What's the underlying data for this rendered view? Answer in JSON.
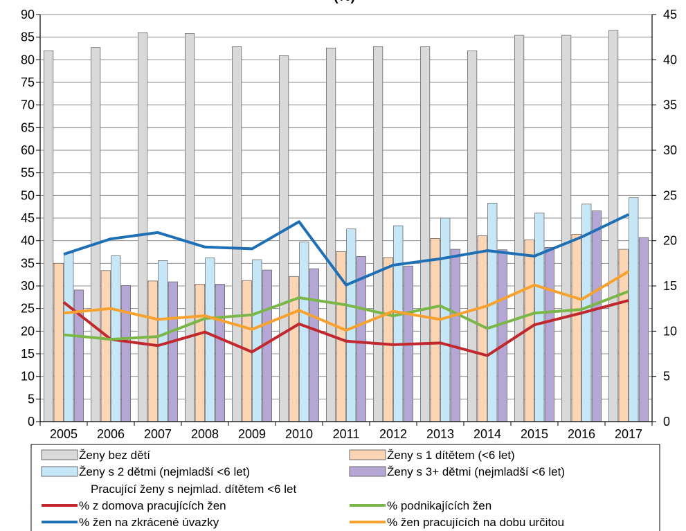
{
  "chart_data": {
    "type": "bar",
    "title": "",
    "title_suffix": "(%)",
    "categories": [
      "2005",
      "2006",
      "2007",
      "2008",
      "2009",
      "2010",
      "2011",
      "2012",
      "2013",
      "2014",
      "2015",
      "2016",
      "2017"
    ],
    "y_left": {
      "min": 0,
      "max": 90,
      "step": 5
    },
    "y_right": {
      "min": 0,
      "max": 45,
      "step": 5
    },
    "bar_series": [
      {
        "name": "Ženy bez dětí",
        "color": "#d9d9d9",
        "values": [
          82.0,
          82.7,
          86.0,
          85.8,
          82.9,
          80.9,
          82.6,
          82.9,
          82.9,
          82.0,
          85.4,
          85.4,
          86.5
        ]
      },
      {
        "name": "Ženy s 1 dítětem (<6 let)",
        "color": "#fcd5b5",
        "values": [
          35.0,
          33.4,
          31.1,
          30.4,
          31.2,
          32.1,
          37.6,
          36.3,
          40.5,
          41.1,
          40.2,
          41.4,
          38.1
        ]
      },
      {
        "name": "Ženy s 2 dětmi (nejmladší <6 let)",
        "color": "#c6e7f7",
        "values": [
          37.3,
          36.7,
          35.6,
          36.2,
          35.8,
          39.7,
          42.6,
          43.3,
          45.0,
          48.3,
          46.1,
          48.1,
          49.5
        ]
      },
      {
        "name": "Ženy s 3+ dětmi (nejmladší <6 let)",
        "color": "#b4a7d6",
        "values": [
          29.1,
          30.1,
          30.9,
          30.4,
          33.5,
          33.8,
          36.5,
          34.4,
          38.1,
          38.0,
          38.5,
          46.6,
          40.7
        ]
      }
    ],
    "legend_heading": "Pracující ženy s nejmlad. dítětem <6 let",
    "line_series": [
      {
        "name": "% z domova pracujících žen",
        "color": "#c0282e",
        "values": [
          13.2,
          9.1,
          8.4,
          9.9,
          7.7,
          10.8,
          8.9,
          8.5,
          8.7,
          7.3,
          10.7,
          12.0,
          13.4
        ]
      },
      {
        "name": "% podnikajících žen",
        "color": "#7ab648",
        "values": [
          9.6,
          9.1,
          9.4,
          11.4,
          11.8,
          13.7,
          12.9,
          11.7,
          12.8,
          10.3,
          12.0,
          12.4,
          14.4
        ]
      },
      {
        "name": "% žen na zkrácené úvazky",
        "color": "#1f6fb5",
        "values": [
          18.5,
          20.2,
          20.9,
          19.3,
          19.1,
          22.1,
          15.1,
          17.3,
          18.0,
          18.9,
          18.3,
          20.4,
          22.9
        ]
      },
      {
        "name": "% žen pracujících na dobu určitou",
        "color": "#f7a12f",
        "values": [
          12.0,
          12.5,
          11.3,
          11.7,
          10.2,
          12.3,
          10.1,
          12.2,
          11.3,
          12.8,
          15.1,
          13.5,
          16.6
        ]
      }
    ]
  }
}
